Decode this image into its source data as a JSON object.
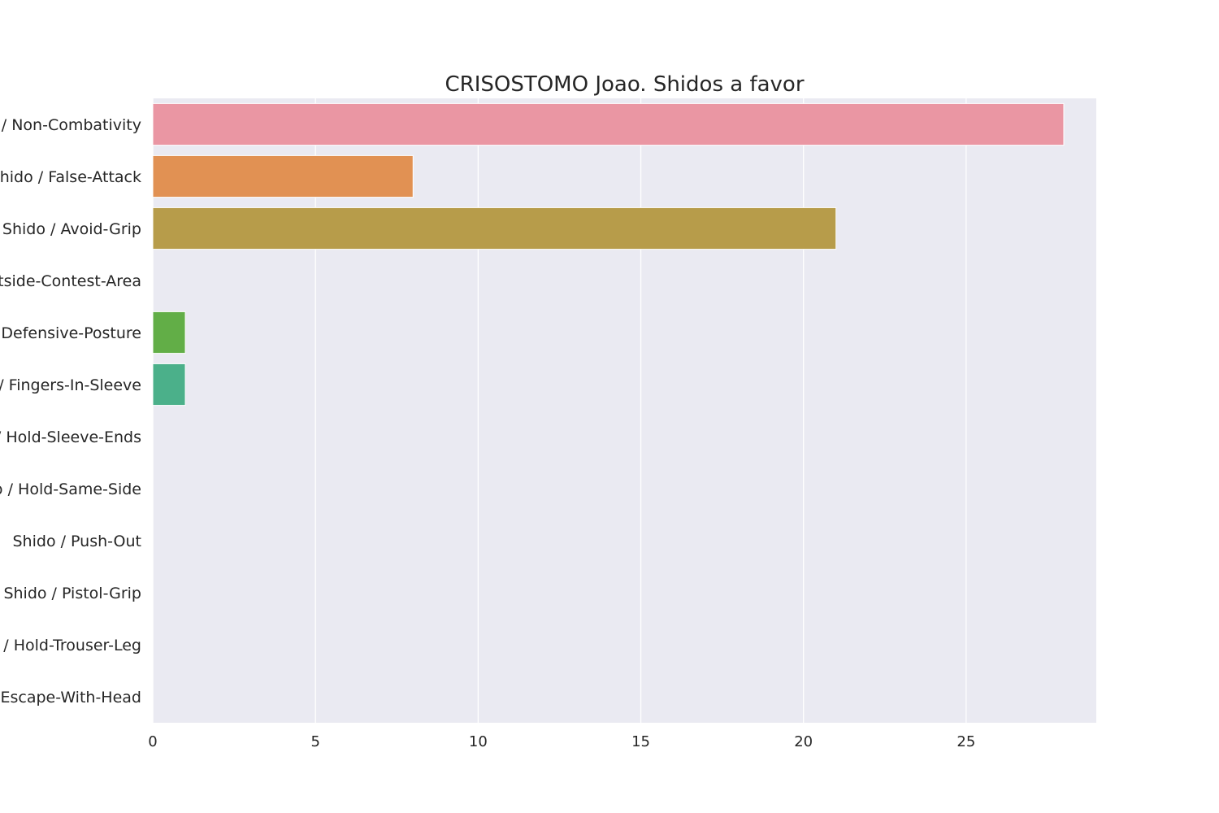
{
  "chart_data": {
    "type": "bar",
    "orientation": "horizontal",
    "title": "CRISOSTOMO Joao. Shidos a favor",
    "xlabel": "",
    "ylabel": "",
    "categories": [
      "Shido / Non-Combativity",
      "Shido / False-Attack",
      "Shido / Avoid-Grip",
      "Shido / Outside-Contest-Area",
      "Shido / Defensive-Posture",
      "Shido / Fingers-In-Sleeve",
      "Shido / Hold-Sleeve-Ends",
      "Shido / Hold-Same-Side",
      "Shido / Push-Out",
      "Shido / Pistol-Grip",
      "Shido / Hold-Trouser-Leg",
      "Shido / Escape-With-Head"
    ],
    "values": [
      28,
      8,
      21,
      0,
      1,
      1,
      0,
      0,
      0,
      0,
      0,
      0
    ],
    "colors": [
      "#ea96a3",
      "#e19153",
      "#b79c4a",
      "#9ca744",
      "#62ae47",
      "#4bb08a",
      "#4cac9f",
      "#4faab3",
      "#5aa5d3",
      "#a09df3",
      "#de8def",
      "#ea8ebf"
    ],
    "xlim": [
      0,
      29
    ],
    "xticks": [
      0,
      5,
      10,
      15,
      20,
      25
    ],
    "grid": true,
    "background": "#eaeaf2"
  }
}
